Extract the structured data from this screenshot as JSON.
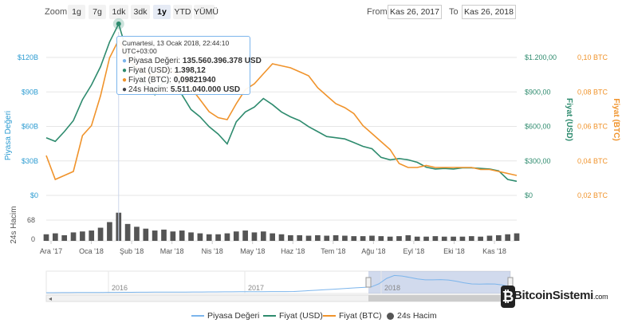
{
  "toolbar": {
    "zoom_label": "Zoom",
    "zoom_buttons": [
      "1g",
      "7g",
      "1dk",
      "3dk",
      "1y",
      "YTD",
      "YÜMÜ"
    ],
    "active_zoom": "1y",
    "from_label": "From",
    "from_value": "Kas 26, 2017",
    "to_label": "To",
    "to_value": "Kas 26, 2018"
  },
  "tooltip": {
    "header": "Cumartesi, 13 Ocak 2018, 22:44:10 UTC+03:00",
    "rows": [
      {
        "label": "Piyasa Değeri:",
        "value": "135.560.396.378 USD",
        "color": "#7cb5ec"
      },
      {
        "label": "Fiyat (USD):",
        "value": "1.398,12",
        "color": "#2e8b6e"
      },
      {
        "label": "Fiyat (BTC):",
        "value": "0,09821940",
        "color": "#f0932b"
      },
      {
        "label": "24s Hacim:",
        "value": "5.511.040.000 USD",
        "color": "#434348"
      }
    ]
  },
  "legend": [
    {
      "name": "Piyasa Değeri",
      "color": "#7cb5ec",
      "kind": "line"
    },
    {
      "name": "Fiyat (USD)",
      "color": "#2e8b6e",
      "kind": "line"
    },
    {
      "name": "Fiyat (BTC)",
      "color": "#f0932b",
      "kind": "line"
    },
    {
      "name": "24s Hacim",
      "color": "#555555",
      "kind": "dot"
    }
  ],
  "watermark": {
    "text": "BitcoinSistemi",
    "suffix": ".com"
  },
  "chart_data": {
    "type": "line",
    "x_tick_labels": [
      "Ara '17",
      "Oca '18",
      "Şub '18",
      "Mar '18",
      "Nis '18",
      "May '18",
      "Haz '18",
      "Tem '18",
      "Ağu '18",
      "Eyl '18",
      "Eki '18",
      "Kas '18"
    ],
    "navigator_labels": [
      "2016",
      "2017",
      "2018"
    ],
    "axes": {
      "market_cap": {
        "title": "Piyasa Değeri",
        "ticks": [
          "$0",
          "$30B",
          "$60B",
          "$90B",
          "$120B"
        ],
        "range": [
          0,
          130
        ],
        "color": "#2b9bd1"
      },
      "price_usd": {
        "title": "Fiyat (USD)",
        "ticks": [
          "$0",
          "$300,00",
          "$600,00",
          "$900,00",
          "$1.200,00"
        ],
        "range": [
          0,
          1300
        ],
        "color": "#2e8b6e"
      },
      "price_btc": {
        "title": "Fiyat (BTC)",
        "ticks": [
          "0,02 BTC",
          "0,04 BTC",
          "0,06 BTC",
          "0,08 BTC",
          "0,10 BTC"
        ],
        "range": [
          0.02,
          0.1
        ],
        "color": "#f0932b"
      },
      "volume": {
        "title": "24s Hacim",
        "ticks": [
          "0",
          "68"
        ],
        "range": [
          0,
          68
        ]
      }
    },
    "series": [
      {
        "name": "Fiyat (USD)",
        "axis": "price_usd",
        "color": "#2e8b6e",
        "values": [
          470,
          440,
          520,
          610,
          780,
          900,
          1050,
          1250,
          1398,
          1150,
          1000,
          900,
          820,
          940,
          900,
          820,
          700,
          640,
          560,
          500,
          420,
          600,
          680,
          720,
          790,
          740,
          680,
          640,
          610,
          560,
          520,
          480,
          470,
          460,
          430,
          400,
          380,
          310,
          290,
          300,
          290,
          270,
          230,
          215,
          220,
          215,
          225,
          225,
          220,
          215,
          200,
          130,
          115
        ]
      },
      {
        "name": "Fiyat (BTC)",
        "axis": "price_btc",
        "color": "#f0932b",
        "values": [
          0.04,
          0.028,
          0.03,
          0.032,
          0.05,
          0.055,
          0.07,
          0.089,
          0.098,
          0.089,
          0.084,
          0.081,
          0.08,
          0.084,
          0.082,
          0.079,
          0.074,
          0.068,
          0.062,
          0.059,
          0.058,
          0.066,
          0.073,
          0.076,
          0.081,
          0.086,
          0.085,
          0.084,
          0.082,
          0.08,
          0.074,
          0.07,
          0.066,
          0.064,
          0.061,
          0.055,
          0.051,
          0.047,
          0.043,
          0.036,
          0.034,
          0.034,
          0.035,
          0.034,
          0.034,
          0.034,
          0.034,
          0.034,
          0.033,
          0.033,
          0.032,
          0.031,
          0.03
        ]
      },
      {
        "name": "24s Hacim",
        "axis": "volume",
        "color": "#555555",
        "values": [
          14,
          16,
          12,
          18,
          20,
          22,
          28,
          40,
          60,
          36,
          30,
          26,
          22,
          24,
          20,
          22,
          18,
          16,
          14,
          14,
          16,
          20,
          22,
          18,
          20,
          16,
          14,
          12,
          12,
          11,
          12,
          11,
          12,
          11,
          10,
          10,
          11,
          10,
          9,
          10,
          12,
          9,
          9,
          10,
          9,
          9,
          9,
          10,
          9,
          11,
          12,
          14,
          16
        ]
      }
    ],
    "navigator": {
      "series": "Piyasa Değeri",
      "selected_range": [
        "Kas 26, 2017",
        "Kas 26, 2018"
      ]
    }
  }
}
